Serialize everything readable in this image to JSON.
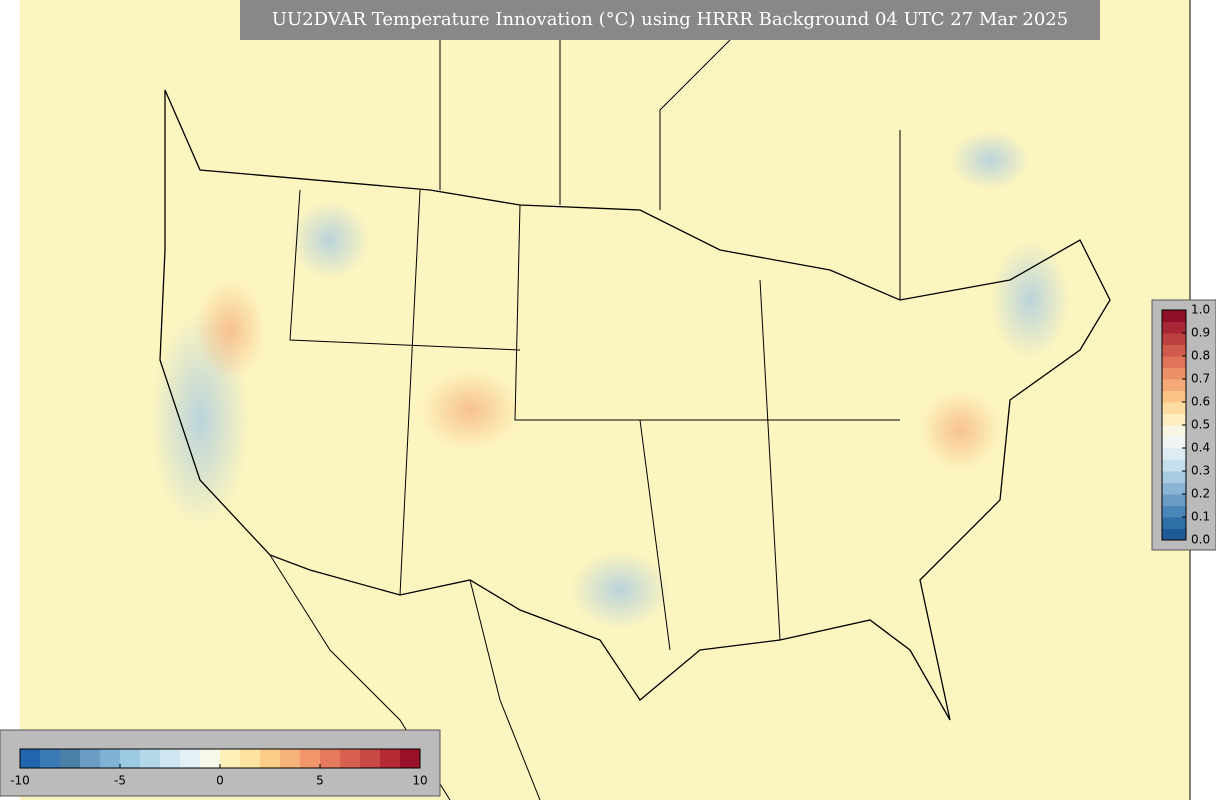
{
  "chart_data": {
    "type": "map",
    "title": "UU2DVAR Temperature Innovation (°C) using HRRR Background 04 UTC 27 Mar 2025",
    "colorbar": {
      "xlim": [
        -10,
        10
      ],
      "xticks": [
        -10,
        -5,
        0,
        5,
        10
      ],
      "colors": [
        "#2166ac",
        "#3a7bb6",
        "#4a7fa8",
        "#6a9cc4",
        "#7fb2d4",
        "#9ccae2",
        "#b4d8ea",
        "#cfe7f0",
        "#e4f1f4",
        "#f6f9ea",
        "#fdf0b8",
        "#fde2a0",
        "#fbcd88",
        "#f7b27a",
        "#f0966a",
        "#e67a5e",
        "#d8604e",
        "#c74a44",
        "#b52a34",
        "#99122a"
      ]
    },
    "colorbar2": {
      "ylim": [
        0,
        1
      ],
      "yticks": [
        {
          "value": 0,
          "label": "0.0"
        },
        0.1,
        0.2,
        0.3,
        0.4,
        0.5,
        0.6,
        0.7,
        0.8,
        0.9,
        {
          "value": 1,
          "label": "1.0"
        }
      ],
      "colors": [
        "#1f5a96",
        "#2f6fa8",
        "#4a86b8",
        "#6a9cc4",
        "#89b4d4",
        "#a9cbe2",
        "#c6dfec",
        "#dcecf2",
        "#eef5f3",
        "#f8f6e4",
        "#fdedc0",
        "#fcdca0",
        "#f9c486",
        "#f4aa78",
        "#ec9068",
        "#e0745a",
        "#d05a4c",
        "#bd4040",
        "#a82636",
        "#8e0f26"
      ]
    }
  }
}
